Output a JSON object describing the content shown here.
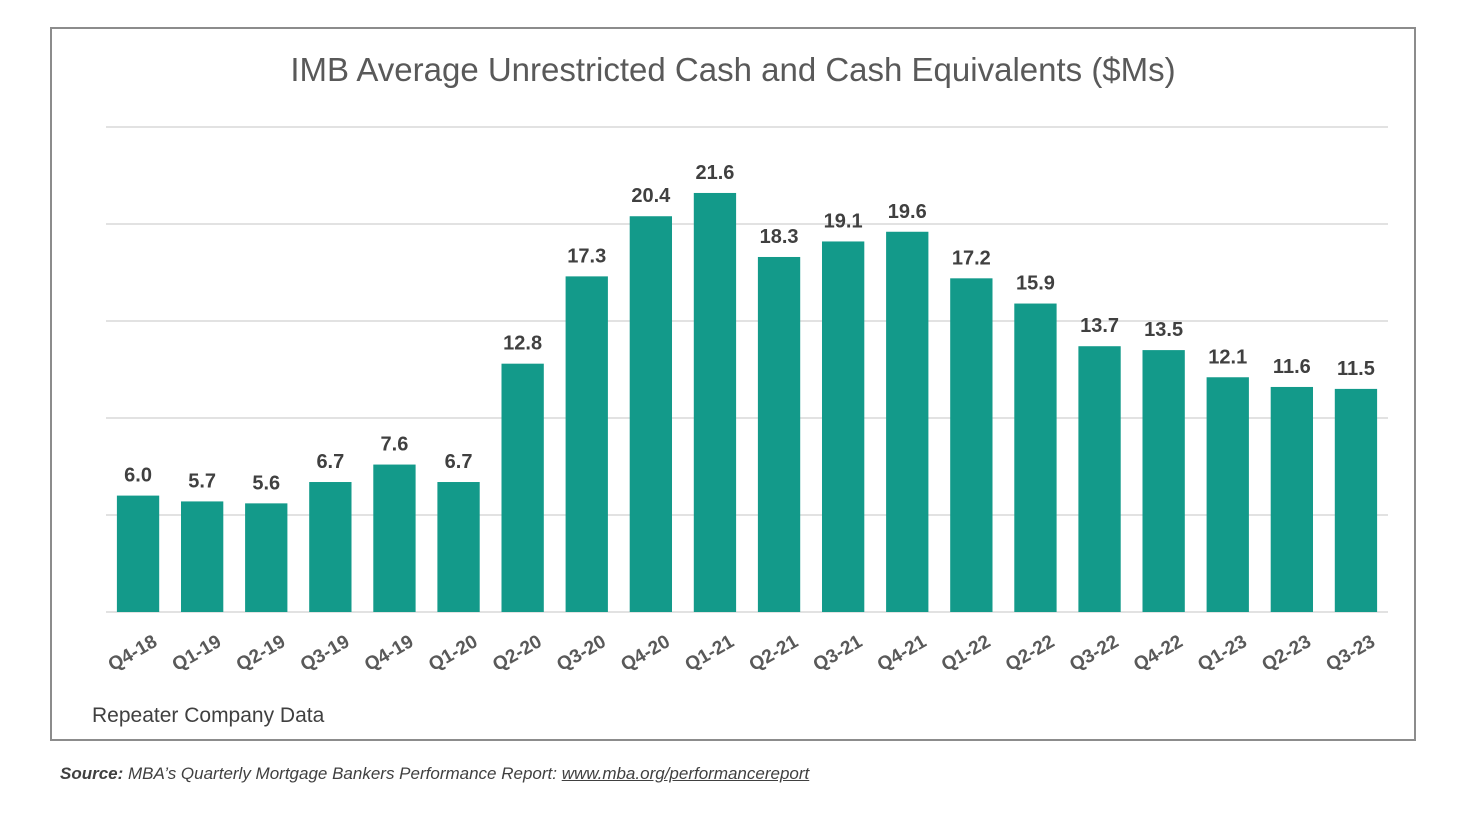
{
  "chart_data": {
    "type": "bar",
    "title": "IMB Average Unrestricted Cash and Cash Equivalents ($Ms)",
    "categories": [
      "Q4-18",
      "Q1-19",
      "Q2-19",
      "Q3-19",
      "Q4-19",
      "Q1-20",
      "Q2-20",
      "Q3-20",
      "Q4-20",
      "Q1-21",
      "Q2-21",
      "Q3-21",
      "Q4-21",
      "Q1-22",
      "Q2-22",
      "Q3-22",
      "Q4-22",
      "Q1-23",
      "Q2-23",
      "Q3-23"
    ],
    "values": [
      6.0,
      5.7,
      5.6,
      6.7,
      7.6,
      6.7,
      12.8,
      17.3,
      20.4,
      21.6,
      18.3,
      19.1,
      19.6,
      17.2,
      15.9,
      13.7,
      13.5,
      12.1,
      11.6,
      11.5
    ],
    "value_labels": [
      "6.0",
      "5.7",
      "5.6",
      "6.7",
      "7.6",
      "6.7",
      "12.8",
      "17.3",
      "20.4",
      "21.6",
      "18.3",
      "19.1",
      "19.6",
      "17.2",
      "15.9",
      "13.7",
      "13.5",
      "12.1",
      "11.6",
      "11.5"
    ],
    "ylim": [
      0,
      25
    ],
    "grid": true,
    "bar_color": "#139a8a",
    "xlabel": "",
    "ylabel": ""
  },
  "note": "Repeater Company Data",
  "source": {
    "label": "Source:",
    "text": " MBA’s Quarterly Mortgage Bankers Performance Report: ",
    "link": "www.mba.org/performancereport"
  }
}
